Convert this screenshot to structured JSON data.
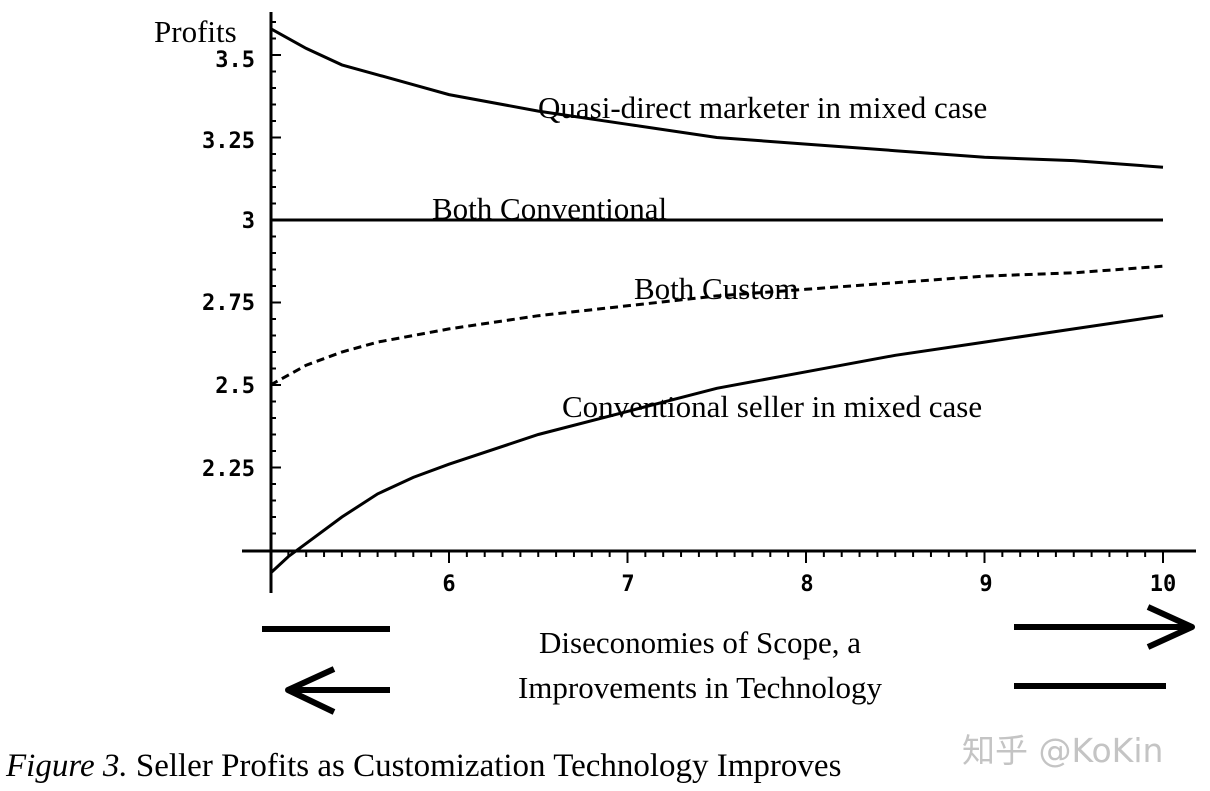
{
  "chart_data": {
    "type": "line",
    "ylabel": "Profits",
    "xlim": [
      5,
      10
    ],
    "ylim": [
      2.0,
      3.65
    ],
    "x_axis_crossing_y": 2.0,
    "xticks": [
      6,
      7,
      8,
      9,
      10
    ],
    "xtick_labels": [
      "6",
      "7",
      "8",
      "9",
      "10"
    ],
    "yticks": [
      2.25,
      2.5,
      2.75,
      3,
      3.5
    ],
    "ytick_labels": [
      "2.25",
      "2.5",
      "2.75",
      "3",
      "3.5"
    ],
    "ytick_3_25": {
      "value": 3.25,
      "label": "3.25"
    },
    "grid": false,
    "series": [
      {
        "name": "Quasi-direct marketer in mixed case",
        "style": "solid",
        "x": [
          5.0,
          5.2,
          5.4,
          5.6,
          5.8,
          6.0,
          6.5,
          7.0,
          7.5,
          8.0,
          8.5,
          9.0,
          9.5,
          10.0
        ],
        "y": [
          3.58,
          3.52,
          3.47,
          3.44,
          3.41,
          3.38,
          3.33,
          3.29,
          3.25,
          3.23,
          3.21,
          3.19,
          3.18,
          3.16
        ]
      },
      {
        "name": "Both Conventional",
        "style": "solid",
        "x": [
          5.0,
          10.0
        ],
        "y": [
          3.0,
          3.0
        ]
      },
      {
        "name": "Both Custom",
        "style": "dashed",
        "x": [
          5.0,
          5.2,
          5.4,
          5.6,
          5.8,
          6.0,
          6.5,
          7.0,
          7.5,
          8.0,
          8.5,
          9.0,
          9.5,
          10.0
        ],
        "y": [
          2.5,
          2.56,
          2.6,
          2.63,
          2.65,
          2.67,
          2.71,
          2.74,
          2.77,
          2.79,
          2.81,
          2.83,
          2.84,
          2.86
        ]
      },
      {
        "name": "Conventional seller in mixed case",
        "style": "solid",
        "x": [
          5.0,
          5.1,
          5.2,
          5.4,
          5.6,
          5.8,
          6.0,
          6.5,
          7.0,
          7.5,
          8.0,
          8.5,
          9.0,
          9.5,
          10.0
        ],
        "y": [
          1.93,
          1.98,
          2.02,
          2.1,
          2.17,
          2.22,
          2.26,
          2.35,
          2.42,
          2.49,
          2.54,
          2.59,
          2.63,
          2.67,
          2.71
        ]
      }
    ],
    "annotations": [
      {
        "text": "Quasi-direct marketer in mixed case",
        "x": 6.5,
        "y": 3.3
      },
      {
        "text": "Both Conventional",
        "x": 5.9,
        "y": 3.03
      },
      {
        "text": "Both Custom",
        "x": 7.0,
        "y": 2.79
      },
      {
        "text": "Conventional seller in mixed case",
        "x": 6.6,
        "y": 2.42
      }
    ]
  },
  "bottom_labels": {
    "line1": "Diseconomies of Scope, a",
    "line2": "Improvements in Technology"
  },
  "caption": {
    "figure": "Figure 3.",
    "text": " Seller Profits as Customization Technology Improves"
  },
  "watermark": "知乎 @KoKin"
}
